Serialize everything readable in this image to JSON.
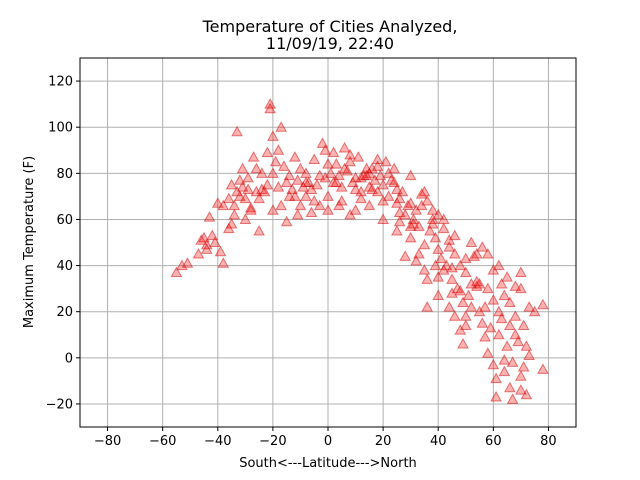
{
  "chart_data": {
    "type": "scatter",
    "title_line1": "Temperature of Cities Analyzed,",
    "title_line2": "11/09/19, 22:40",
    "xlabel": "South<---Latitude--->North",
    "ylabel": "Maximum Temperature (F)",
    "xlim": [
      -90,
      90
    ],
    "ylim": [
      -30,
      130
    ],
    "xticks": [
      -80,
      -60,
      -40,
      -20,
      0,
      20,
      40,
      60,
      80
    ],
    "yticks": [
      -20,
      0,
      20,
      40,
      60,
      80,
      100,
      120
    ],
    "grid": true,
    "marker": "triangle",
    "colors": {
      "marker_fill": "#ff0000",
      "marker_edge": "#cc0000",
      "grid": "#b0b0b0",
      "axes": "#000000"
    },
    "series": [
      {
        "points": [
          [
            -55,
            37
          ],
          [
            -53,
            40
          ],
          [
            -51,
            41
          ],
          [
            -47,
            45
          ],
          [
            -46,
            51
          ],
          [
            -45,
            52
          ],
          [
            -44,
            49
          ],
          [
            -43,
            61
          ],
          [
            -42,
            53
          ],
          [
            -41,
            50
          ],
          [
            -40,
            67
          ],
          [
            -39,
            46
          ],
          [
            -38,
            41
          ],
          [
            -36,
            69
          ],
          [
            -35,
            75
          ],
          [
            -34,
            62
          ],
          [
            -34,
            66
          ],
          [
            -33,
            72
          ],
          [
            -33,
            98
          ],
          [
            -32,
            77
          ],
          [
            -32,
            70
          ],
          [
            -31,
            82
          ],
          [
            -30,
            69
          ],
          [
            -29,
            73
          ],
          [
            -28,
            65
          ],
          [
            -27,
            87
          ],
          [
            -26,
            72
          ],
          [
            -25,
            69
          ],
          [
            -24,
            73
          ],
          [
            -23,
            72
          ],
          [
            -22,
            75
          ],
          [
            -21,
            110
          ],
          [
            -21,
            108
          ],
          [
            -20,
            80
          ],
          [
            -19,
            85
          ],
          [
            -18,
            74
          ],
          [
            -17,
            66
          ],
          [
            -17,
            100
          ],
          [
            -16,
            83
          ],
          [
            -15,
            76
          ],
          [
            -14,
            79
          ],
          [
            -13,
            73
          ],
          [
            -12,
            70
          ],
          [
            -11,
            77
          ],
          [
            -10,
            82
          ],
          [
            -9,
            74
          ],
          [
            -8,
            70
          ],
          [
            -7,
            76
          ],
          [
            -6,
            73
          ],
          [
            -5,
            86
          ],
          [
            -4,
            75
          ],
          [
            -3,
            79
          ],
          [
            -2,
            93
          ],
          [
            -1,
            90
          ],
          [
            0,
            70
          ],
          [
            0,
            64
          ],
          [
            1,
            80
          ],
          [
            2,
            76
          ],
          [
            3,
            84
          ],
          [
            4,
            79
          ],
          [
            5,
            74
          ],
          [
            6,
            91
          ],
          [
            7,
            81
          ],
          [
            8,
            85
          ],
          [
            9,
            76
          ],
          [
            10,
            78
          ],
          [
            11,
            87
          ],
          [
            12,
            78
          ],
          [
            13,
            79
          ],
          [
            14,
            82
          ],
          [
            15,
            80
          ],
          [
            16,
            73
          ],
          [
            17,
            77
          ],
          [
            18,
            86
          ],
          [
            19,
            79
          ],
          [
            20,
            75
          ],
          [
            21,
            85
          ],
          [
            22,
            80
          ],
          [
            23,
            77
          ],
          [
            24,
            82
          ],
          [
            25,
            73
          ],
          [
            26,
            69
          ],
          [
            27,
            72
          ],
          [
            28,
            62
          ],
          [
            29,
            66
          ],
          [
            30,
            79
          ],
          [
            31,
            60
          ],
          [
            32,
            64
          ],
          [
            33,
            57
          ],
          [
            34,
            66
          ],
          [
            35,
            72
          ],
          [
            36,
            68
          ],
          [
            37,
            55
          ],
          [
            38,
            58
          ],
          [
            39,
            52
          ],
          [
            40,
            47
          ],
          [
            41,
            43
          ],
          [
            42,
            56
          ],
          [
            43,
            40
          ],
          [
            44,
            48
          ],
          [
            45,
            39
          ],
          [
            46,
            45
          ],
          [
            47,
            30
          ],
          [
            48,
            29
          ],
          [
            49,
            24
          ],
          [
            50,
            18
          ],
          [
            51,
            27
          ],
          [
            52,
            22
          ],
          [
            53,
            44
          ],
          [
            54,
            31
          ],
          [
            55,
            20
          ],
          [
            56,
            15
          ],
          [
            57,
            9
          ],
          [
            58,
            2
          ],
          [
            59,
            13
          ],
          [
            60,
            -3
          ],
          [
            61,
            -9
          ],
          [
            62,
            10
          ],
          [
            63,
            17
          ],
          [
            64,
            -6
          ],
          [
            65,
            5
          ],
          [
            66,
            -13
          ],
          [
            67,
            -2
          ],
          [
            68,
            18
          ],
          [
            69,
            7
          ],
          [
            70,
            -8
          ],
          [
            71,
            -4
          ],
          [
            72,
            -16
          ],
          [
            73,
            22
          ],
          [
            75,
            20
          ],
          [
            78,
            -5
          ],
          [
            78,
            23
          ],
          [
            -30,
            60
          ],
          [
            -25,
            55
          ],
          [
            -20,
            64
          ],
          [
            -15,
            59
          ],
          [
            -10,
            66
          ],
          [
            -5,
            68
          ],
          [
            5,
            68
          ],
          [
            10,
            64
          ],
          [
            15,
            74
          ],
          [
            20,
            68
          ],
          [
            25,
            55
          ],
          [
            30,
            52
          ],
          [
            35,
            49
          ],
          [
            40,
            35
          ],
          [
            45,
            28
          ],
          [
            50,
            14
          ],
          [
            55,
            32
          ],
          [
            60,
            25
          ],
          [
            65,
            35
          ],
          [
            70,
            30
          ],
          [
            -12,
            87
          ],
          [
            -8,
            80
          ],
          [
            -6,
            63
          ],
          [
            -3,
            66
          ],
          [
            4,
            66
          ],
          [
            8,
            62
          ],
          [
            12,
            72
          ],
          [
            18,
            72
          ],
          [
            22,
            70
          ],
          [
            26,
            63
          ],
          [
            32,
            42
          ],
          [
            36,
            22
          ],
          [
            38,
            60
          ],
          [
            42,
            60
          ],
          [
            46,
            53
          ],
          [
            52,
            50
          ],
          [
            58,
            45
          ],
          [
            62,
            40
          ],
          [
            66,
            24
          ],
          [
            68,
            31
          ],
          [
            73,
            1
          ],
          [
            35,
            38
          ],
          [
            48,
            40
          ],
          [
            56,
            48
          ],
          [
            64,
            27
          ],
          [
            70,
            37
          ],
          [
            -35,
            58
          ],
          [
            -28,
            64
          ],
          [
            -22,
            89
          ],
          [
            -18,
            90
          ],
          [
            -11,
            62
          ],
          [
            2,
            89
          ],
          [
            6,
            82
          ],
          [
            14,
            79
          ],
          [
            24,
            76
          ],
          [
            30,
            67
          ],
          [
            34,
            71
          ],
          [
            38,
            64
          ],
          [
            44,
            51
          ],
          [
            50,
            37
          ],
          [
            54,
            45
          ],
          [
            60,
            38
          ],
          [
            66,
            14
          ],
          [
            72,
            5
          ],
          [
            58,
            30
          ],
          [
            61,
            -17
          ],
          [
            67,
            -18
          ],
          [
            70,
            -14
          ],
          [
            64,
            -1
          ],
          [
            52,
            32
          ],
          [
            48,
            12
          ],
          [
            44,
            22
          ],
          [
            40,
            27
          ],
          [
            46,
            18
          ],
          [
            36,
            34
          ],
          [
            33,
            45
          ],
          [
            28,
            44
          ],
          [
            26,
            59
          ],
          [
            30,
            57
          ],
          [
            20,
            60
          ],
          [
            15,
            66
          ],
          [
            10,
            73
          ],
          [
            3,
            76
          ],
          [
            -1,
            78
          ],
          [
            -8,
            76
          ],
          [
            -14,
            70
          ],
          [
            -24,
            80
          ],
          [
            -29,
            78
          ],
          [
            -38,
            66
          ],
          [
            -44,
            47
          ],
          [
            -36,
            56
          ],
          [
            -31,
            74
          ],
          [
            -26,
            82
          ],
          [
            -20,
            96
          ],
          [
            0,
            84
          ],
          [
            8,
            88
          ],
          [
            16,
            82
          ],
          [
            40,
            62
          ],
          [
            42,
            38
          ],
          [
            50,
            43
          ],
          [
            54,
            33
          ],
          [
            62,
            20
          ],
          [
            68,
            10
          ],
          [
            71,
            14
          ],
          [
            63,
            32
          ],
          [
            57,
            22
          ],
          [
            49,
            6
          ],
          [
            45,
            34
          ],
          [
            39,
            40
          ],
          [
            31,
            58
          ],
          [
            25,
            67
          ],
          [
            18,
            83
          ],
          [
            12,
            69
          ]
        ]
      }
    ]
  }
}
